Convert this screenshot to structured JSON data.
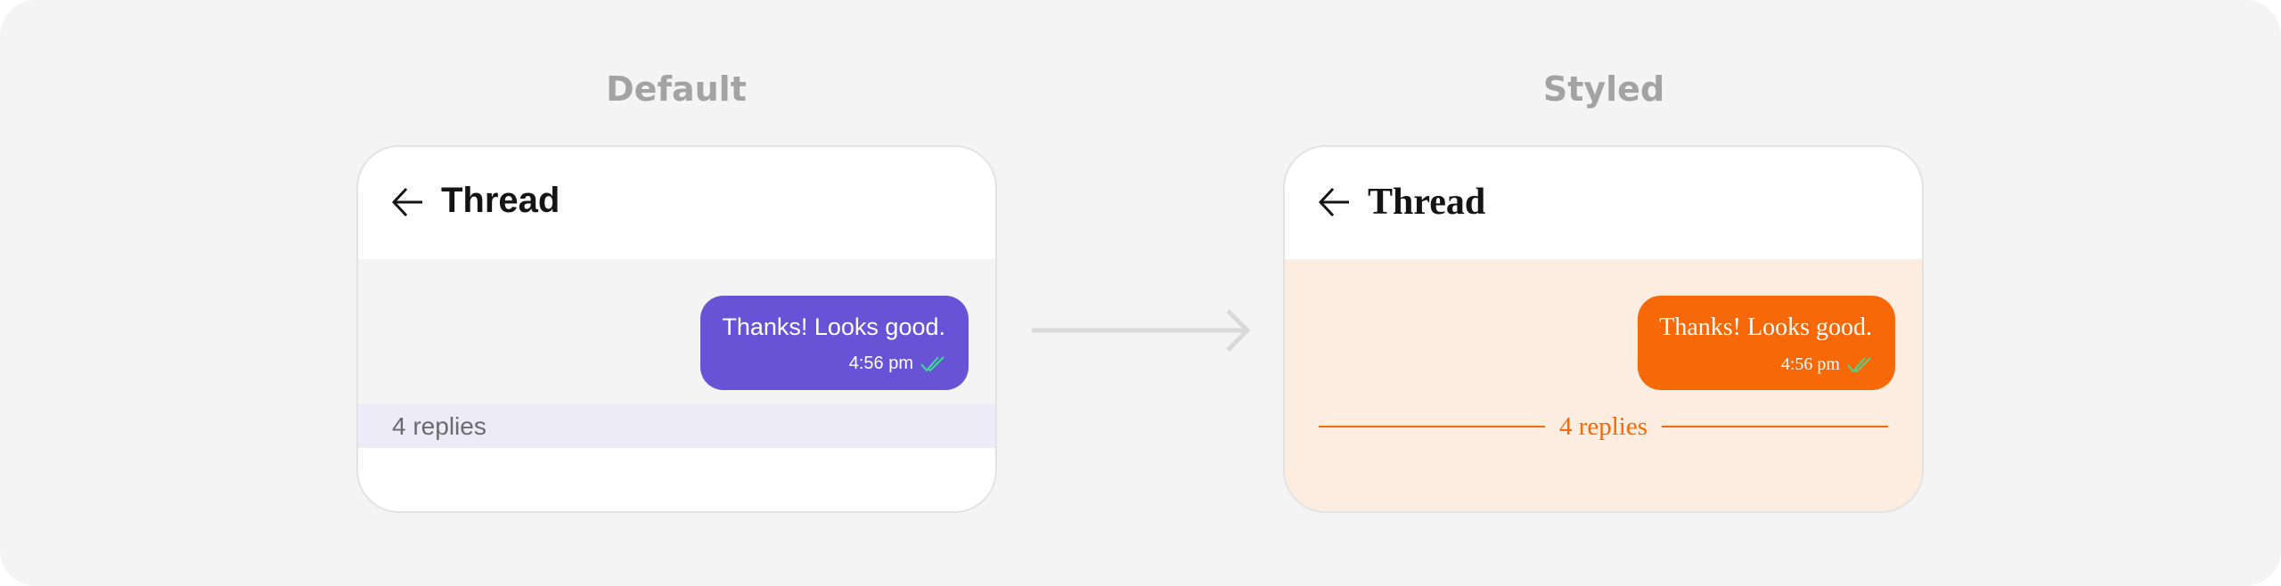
{
  "default": {
    "label": "Default",
    "title": "Thread",
    "message": "Thanks! Looks good.",
    "time": "4:56 pm",
    "replies": "4 replies",
    "bubble_color": "#6852d6",
    "replies_bg": "#ecebf7"
  },
  "styled": {
    "label": "Styled",
    "title": "Thread",
    "message": "Thanks! Looks good.",
    "time": "4:56 pm",
    "replies": "4 replies",
    "bubble_color": "#f76808",
    "body_bg": "#fdede1"
  },
  "icons": {
    "back": "arrow-left-icon",
    "read": "double-check-icon",
    "transition": "arrow-right-icon"
  },
  "colors": {
    "read_check": "#3ddc97"
  }
}
